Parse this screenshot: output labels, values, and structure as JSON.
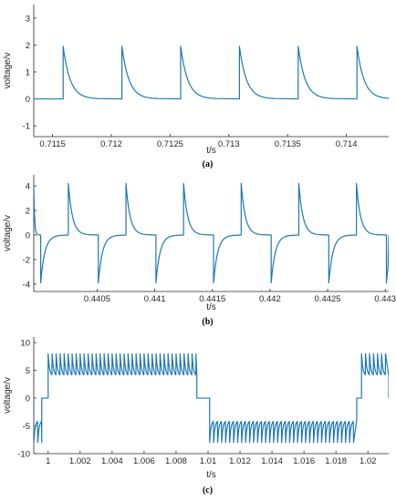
{
  "colors": {
    "line": "#1f77b4",
    "axis": "#262626"
  },
  "chart_data": [
    {
      "type": "line",
      "caption": "(a)",
      "xlabel": "t/s",
      "ylabel": "voltage/v",
      "xlim": [
        0.71134,
        0.71436
      ],
      "ylim": [
        -1.4,
        3.5
      ],
      "xticks": [
        0.7115,
        0.712,
        0.7125,
        0.713,
        0.7135,
        0.714
      ],
      "xtick_labels": [
        "0.7115",
        "0.712",
        "0.7125",
        "0.713",
        "0.7135",
        "0.714"
      ],
      "yticks": [
        -1,
        0,
        1,
        2,
        3
      ],
      "ytick_labels": [
        "-1",
        "0",
        "1",
        "2",
        "3"
      ],
      "grid": false,
      "series": [
        {
          "pattern": "unipolar decaying pulse train",
          "period": 0.0005,
          "first_rise": 0.71159,
          "peak": 1.95,
          "baseline": 0,
          "decay_duration": 0.0003
        }
      ]
    },
    {
      "type": "line",
      "caption": "(b)",
      "xlabel": "t/s",
      "ylabel": "voltage/v",
      "xlim": [
        0.43995,
        0.44303
      ],
      "ylim": [
        -4.6,
        4.9
      ],
      "xticks": [
        0.4405,
        0.441,
        0.4415,
        0.442,
        0.4425,
        0.443
      ],
      "xtick_labels": [
        "0.4405",
        "0.441",
        "0.4415",
        "0.442",
        "0.4425",
        "0.443"
      ],
      "yticks": [
        -4,
        -2,
        0,
        2,
        4
      ],
      "ytick_labels": [
        "-4",
        "-2",
        "0",
        "2",
        "4"
      ],
      "grid": false,
      "series": [
        {
          "pattern": "bipolar decaying pulse train",
          "period": 0.0005,
          "first_positive_edge": 0.44025,
          "first_negative_edge": 0.44001,
          "peak": 4.2,
          "trough": -3.9,
          "baseline": 0,
          "decay_duration": 0.00018
        }
      ]
    },
    {
      "type": "line",
      "caption": "(c)",
      "xlabel": "t/s",
      "ylabel": "voltage/v",
      "xlim": [
        0.9991,
        1.0213
      ],
      "ylim": [
        -10,
        11
      ],
      "xticks": [
        1,
        1.002,
        1.004,
        1.006,
        1.008,
        1.01,
        1.012,
        1.014,
        1.016,
        1.018,
        1.02
      ],
      "xtick_labels": [
        "1",
        "1.002",
        "1.004",
        "1.006",
        "1.008",
        "1.01",
        "1.012",
        "1.014",
        "1.016",
        "1.018",
        "1.02"
      ],
      "yticks": [
        -10,
        -5,
        0,
        5,
        10
      ],
      "ytick_labels": [
        "-10",
        "-5",
        "0",
        "5",
        "10"
      ],
      "grid": false,
      "series": [
        {
          "pattern": "square-modulated sawtooth",
          "high_band": [
            4,
            8
          ],
          "low_band": [
            -8,
            -4
          ],
          "high_intervals": [
            [
              1.0,
              1.0093
            ],
            [
              1.0196,
              1.0213
            ]
          ],
          "low_intervals": [
            [
              0.9991,
              0.9996
            ],
            [
              1.0101,
              1.0193
            ]
          ],
          "zero_steps": [
            [
              0.9996,
              1.0
            ],
            [
              1.0093,
              1.0101
            ],
            [
              1.0193,
              1.0196
            ]
          ],
          "ripple_period": 0.00025
        }
      ]
    }
  ]
}
